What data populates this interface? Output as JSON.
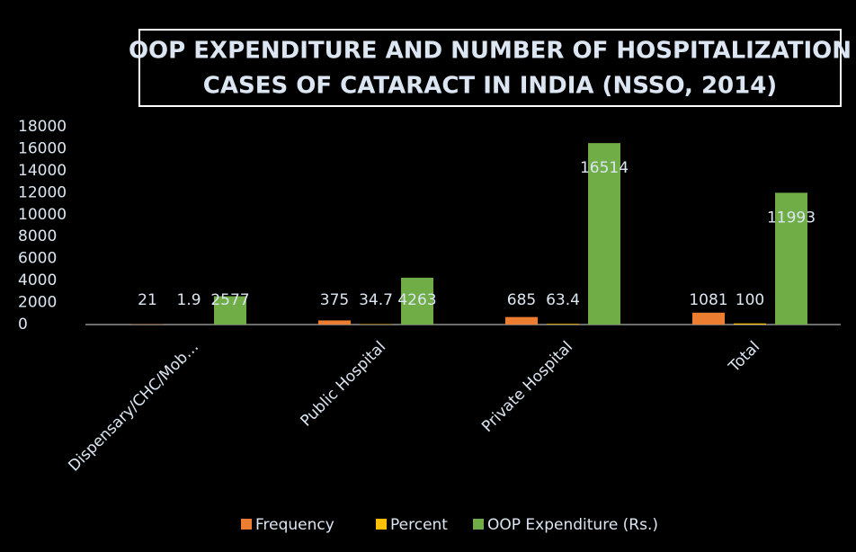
{
  "chart_data": {
    "type": "bar",
    "title": [
      "OOP EXPENDITURE AND NUMBER OF HOSPITALIZATION",
      "CASES OF CATARACT IN INDIA (NSSO, 2014)"
    ],
    "categories": [
      "Dispensary/CHC/Mob…",
      "Public Hospital",
      "Private Hospital",
      "Total"
    ],
    "series": [
      {
        "name": "Frequency",
        "color": "#ed7d31",
        "values": [
          21,
          375,
          685,
          1081
        ]
      },
      {
        "name": "Percent",
        "color": "#ffc000",
        "values": [
          1.9,
          34.7,
          63.4,
          100
        ]
      },
      {
        "name": "OOP Expenditure (Rs.)",
        "color": "#70ad47",
        "values": [
          2577,
          4263,
          16514,
          11993
        ]
      }
    ],
    "ylim": [
      0,
      18000
    ],
    "yticks": [
      0,
      2000,
      4000,
      6000,
      8000,
      10000,
      12000,
      14000,
      16000,
      18000
    ],
    "legend": "bottom"
  }
}
